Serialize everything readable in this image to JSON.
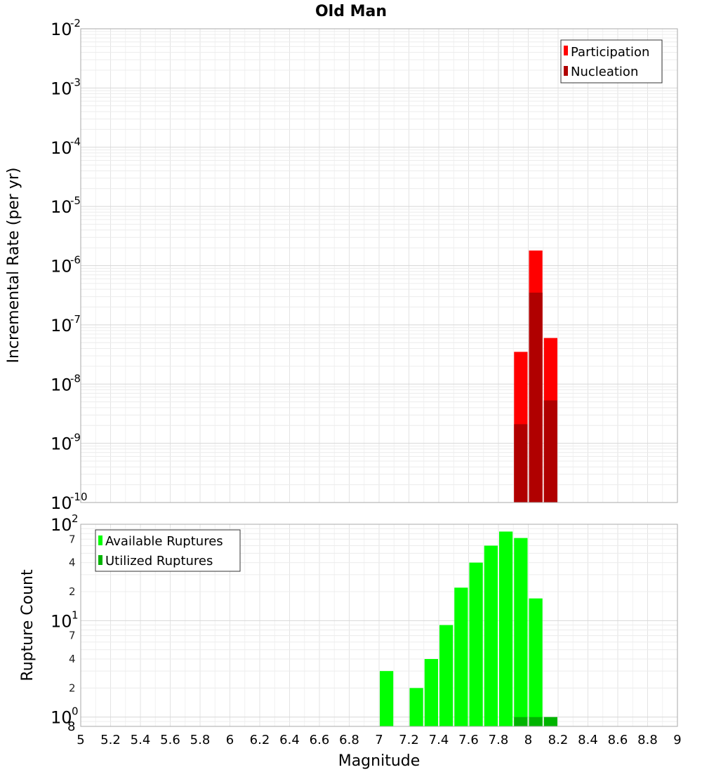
{
  "chart_data": [
    {
      "type": "bar",
      "title": "Old Man",
      "ylabel": "Incremental Rate (per yr)",
      "xlabel": "",
      "x_range": [
        5,
        9
      ],
      "ylim": [
        1e-10,
        0.01
      ],
      "y_scale": "log",
      "grid": true,
      "legend_position": "top-right",
      "bar_width": 0.1,
      "series": [
        {
          "name": "Participation",
          "color": "#ff0000",
          "x": [
            7.95,
            8.05,
            8.15
          ],
          "values": [
            3.5e-08,
            1.8e-06,
            6e-08
          ]
        },
        {
          "name": "Nucleation",
          "color": "#b00000",
          "x": [
            7.95,
            8.05,
            8.15
          ],
          "values": [
            2.1e-09,
            3.5e-07,
            5.3e-09
          ]
        }
      ]
    },
    {
      "type": "bar",
      "title": "",
      "ylabel": "Rupture Count",
      "xlabel": "Magnitude",
      "x_range": [
        5,
        9
      ],
      "x_ticks": [
        "5",
        "5.2",
        "5.4",
        "5.6",
        "5.8",
        "6",
        "6.2",
        "6.4",
        "6.6",
        "6.8",
        "7",
        "7.2",
        "7.4",
        "7.6",
        "7.8",
        "8",
        "8.2",
        "8.4",
        "8.6",
        "8.8",
        "9"
      ],
      "ylim": [
        0.8,
        100
      ],
      "y_scale": "log",
      "grid": true,
      "legend_position": "top-left",
      "bar_width": 0.1,
      "series": [
        {
          "name": "Available Ruptures",
          "color": "#00ff00",
          "x": [
            7.05,
            7.25,
            7.35,
            7.45,
            7.55,
            7.65,
            7.75,
            7.85,
            7.95,
            8.05
          ],
          "values": [
            3,
            2,
            4,
            9,
            22,
            40,
            60,
            84,
            72,
            17
          ]
        },
        {
          "name": "Utilized Ruptures",
          "color": "#00b400",
          "x": [
            7.95,
            8.05,
            8.15
          ],
          "values": [
            1,
            1,
            1
          ]
        }
      ]
    }
  ]
}
